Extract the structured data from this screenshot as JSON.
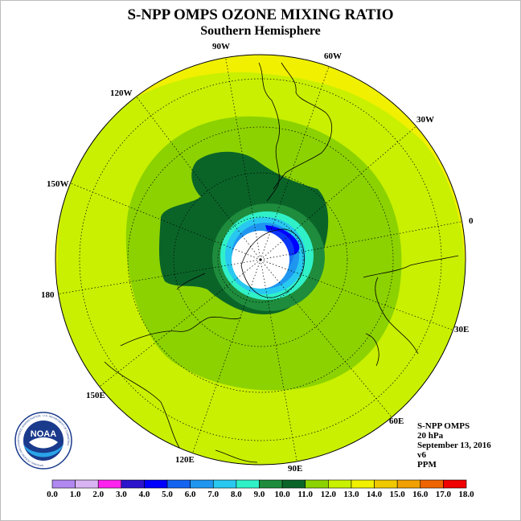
{
  "header": {
    "title": "S-NPP OMPS OZONE MIXING RATIO",
    "subtitle": "Southern Hemisphere"
  },
  "map": {
    "projection": "south-polar-stereographic",
    "longitude_labels": [
      "90W",
      "60W",
      "30W",
      "0",
      "30E",
      "60E",
      "90E",
      "120E",
      "150E",
      "180",
      "150W",
      "120W"
    ],
    "latitude_circles_deg": [
      -80,
      -60,
      -40,
      -20
    ],
    "field_levels_ppm": {
      "polar_hole": "<4.0",
      "ring_inner": "4.0-8.0",
      "ring_mid": "8.0-10.0",
      "midlatitudes": "10.0-12.0",
      "outer": "12.0-14.0"
    }
  },
  "info": {
    "instrument": "S-NPP OMPS",
    "level": "20 hPa",
    "date": "September 13, 2016",
    "version": "v6",
    "units": "PPM"
  },
  "colorbar": {
    "labels": [
      "0.0",
      "1.0",
      "2.0",
      "3.0",
      "4.0",
      "5.0",
      "6.0",
      "7.0",
      "8.0",
      "9.0",
      "10.0",
      "11.0",
      "12.0",
      "13.0",
      "14.0",
      "15.0",
      "16.0",
      "17.0",
      "18.0"
    ],
    "colors": [
      "#b088f0",
      "#d8b4f2",
      "#ff22ee",
      "#2c14cc",
      "#0000ff",
      "#1464f0",
      "#1e96f0",
      "#28c8f0",
      "#30f0c8",
      "#1e8c3c",
      "#0a6428",
      "#8cd200",
      "#c8f000",
      "#f0f000",
      "#f0c800",
      "#f0a000",
      "#f06400",
      "#f00000",
      "#8b5a2b"
    ]
  },
  "logo": {
    "text": "NOAA",
    "ring_text": "NATIONAL OCEANIC AND ATMOSPHERIC ADMINISTRATION · U.S. DEPARTMENT OF COMMERCE"
  }
}
